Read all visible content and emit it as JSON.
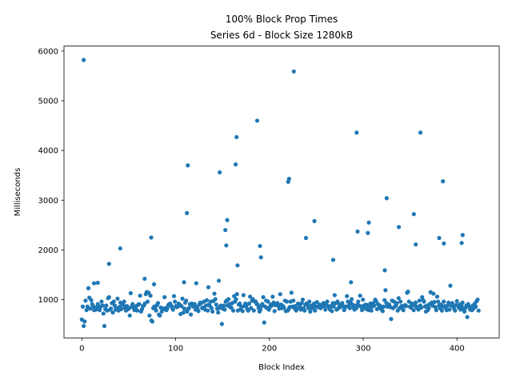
{
  "chart_data": {
    "type": "scatter",
    "title": "100% Block Prop Times",
    "subtitle": "Series 6d - Block Size 1280kB",
    "xlabel": "Block Index",
    "ylabel": "Milliseconds",
    "xlim": [
      -19,
      445
    ],
    "ylim": [
      230,
      6100
    ],
    "xticks": [
      0,
      100,
      200,
      300,
      400
    ],
    "yticks": [
      1000,
      2000,
      3000,
      4000,
      5000,
      6000
    ],
    "grid": false,
    "marker_color": "#1f77b4",
    "outliers": [
      [
        2,
        5820
      ],
      [
        13,
        1330
      ],
      [
        17,
        1340
      ],
      [
        29,
        1720
      ],
      [
        41,
        2030
      ],
      [
        67,
        1420
      ],
      [
        74,
        2250
      ],
      [
        77,
        1310
      ],
      [
        109,
        1350
      ],
      [
        112,
        2740
      ],
      [
        113,
        3700
      ],
      [
        122,
        1330
      ],
      [
        135,
        1250
      ],
      [
        146,
        1380
      ],
      [
        147,
        3560
      ],
      [
        153,
        2400
      ],
      [
        154,
        2090
      ],
      [
        155,
        2600
      ],
      [
        164,
        3720
      ],
      [
        165,
        4270
      ],
      [
        166,
        1690
      ],
      [
        187,
        4600
      ],
      [
        190,
        2080
      ],
      [
        191,
        1850
      ],
      [
        220,
        3370
      ],
      [
        221,
        3430
      ],
      [
        226,
        5590
      ],
      [
        239,
        2240
      ],
      [
        248,
        2580
      ],
      [
        268,
        1800
      ],
      [
        287,
        1350
      ],
      [
        293,
        4360
      ],
      [
        294,
        2370
      ],
      [
        305,
        2340
      ],
      [
        306,
        2550
      ],
      [
        323,
        1590
      ],
      [
        325,
        3040
      ],
      [
        338,
        2460
      ],
      [
        354,
        2720
      ],
      [
        356,
        2110
      ],
      [
        361,
        4360
      ],
      [
        381,
        2240
      ],
      [
        385,
        3380
      ],
      [
        386,
        2130
      ],
      [
        405,
        2140
      ],
      [
        406,
        2300
      ]
    ],
    "base_points": {
      "x_start": 0,
      "x_end": 423,
      "y_values": [
        600,
        860,
        470,
        560,
        980,
        790,
        860,
        1230,
        1040,
        820,
        990,
        910,
        870,
        790,
        840,
        800,
        850,
        910,
        820,
        790,
        860,
        960,
        880,
        720,
        470,
        810,
        880,
        780,
        1030,
        1050,
        800,
        820,
        930,
        740,
        960,
        880,
        800,
        830,
        1020,
        780,
        850,
        940,
        810,
        900,
        890,
        960,
        830,
        780,
        870,
        810,
        820,
        680,
        1130,
        860,
        910,
        840,
        790,
        820,
        870,
        780,
        900,
        910,
        1080,
        760,
        810,
        870,
        880,
        920,
        1110,
        1150,
        960,
        1140,
        680,
        1080,
        580,
        560,
        830,
        860,
        820,
        780,
        890,
        930,
        700,
        680,
        840,
        760,
        800,
        820,
        1050,
        830,
        790,
        830,
        890,
        910,
        920,
        880,
        840,
        800,
        1070,
        960,
        870,
        850,
        860,
        920,
        900,
        710,
        870,
        1020,
        740,
        820,
        940,
        980,
        760,
        810,
        830,
        910,
        700,
        920,
        870,
        860,
        910,
        800,
        850,
        820,
        770,
        900,
        940,
        930,
        830,
        840,
        960,
        800,
        880,
        990,
        780,
        900,
        880,
        960,
        830,
        760,
        970,
        1120,
        1010,
        900,
        820,
        740,
        830,
        860,
        880,
        510,
        820,
        880,
        800,
        960,
        980,
        880,
        1010,
        910,
        850,
        840,
        930,
        780,
        1070,
        960,
        1010,
        1110,
        780,
        900,
        920,
        810,
        860,
        770,
        1090,
        870,
        920,
        880,
        810,
        780,
        920,
        1060,
        830,
        980,
        1010,
        780,
        960,
        960,
        910,
        900,
        830,
        760,
        800,
        870,
        910,
        1050,
        540,
        860,
        980,
        830,
        960,
        800,
        850,
        900,
        880,
        1060,
        940,
        770,
        890,
        910,
        930,
        880,
        820,
        1110,
        900,
        830,
        870,
        840,
        980,
        770,
        960,
        780,
        810,
        850,
        960,
        1140,
        860,
        980,
        830,
        870,
        780,
        820,
        920,
        910,
        860,
        800,
        930,
        1000,
        830,
        780,
        900,
        920,
        890,
        830,
        960,
        760,
        880,
        830,
        870,
        920,
        780,
        860,
        950,
        850,
        870,
        900,
        830,
        860,
        890,
        930,
        870,
        800,
        890,
        960,
        870,
        840,
        800,
        870,
        770,
        930,
        860,
        1090,
        930,
        800,
        960,
        830,
        900,
        850,
        890,
        930,
        870,
        790,
        840,
        860,
        1070,
        960,
        880,
        830,
        940,
        1010,
        900,
        840,
        800,
        880,
        830,
        890,
        960,
        880,
        1080,
        860,
        790,
        1000,
        880,
        830,
        900,
        810,
        890,
        790,
        850,
        920,
        780,
        860,
        930,
        880,
        1000,
        970,
        810,
        910,
        830,
        880,
        850,
        800,
        770,
        860,
        990,
        1190,
        930,
        860,
        880,
        900,
        850,
        610,
        980,
        830,
        960,
        860,
        880,
        930,
        780,
        1030,
        830,
        960,
        870,
        830,
        790,
        880,
        890,
        870,
        1140,
        1160,
        960,
        860,
        840,
        920,
        900,
        790,
        880,
        940,
        860,
        830,
        800,
        980,
        880,
        840,
        1050,
        990,
        960,
        860,
        760,
        880,
        790,
        830,
        910,
        1150,
        940,
        880,
        1120,
        950,
        850,
        790,
        1060,
        960,
        880,
        830,
        900,
        780,
        860,
        960,
        870,
        840,
        790,
        880,
        940,
        800,
        1280,
        880,
        930,
        860,
        820,
        780,
        890,
        970,
        880,
        840,
        900,
        800,
        870,
        940,
        820,
        760,
        830,
        880,
        650,
        910,
        860,
        800,
        850,
        790,
        880,
        830,
        920,
        860,
        970,
        1000,
        780
      ]
    }
  }
}
